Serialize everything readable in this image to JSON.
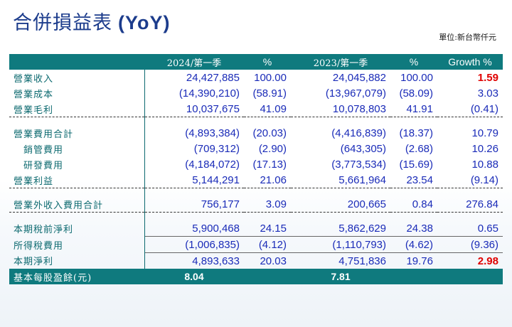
{
  "title": {
    "cjk": "合併損益表",
    "latin": "(YoY)"
  },
  "unit_note": "單位:新台幣仟元",
  "headers": [
    "",
    "2024/第一季",
    "%",
    "2023/第一季",
    "%",
    "Growth %"
  ],
  "rows": [
    {
      "label": "營業收入",
      "v1": "24,427,885",
      "p1": "100.00",
      "v2": "24,045,882",
      "p2": "100.00",
      "g": "1.59"
    },
    {
      "label": "營業成本",
      "v1": "(14,390,210)",
      "p1": "(58.91)",
      "v2": "(13,967,079)",
      "p2": "(58.09)",
      "g": "3.03"
    },
    {
      "label": "營業毛利",
      "v1": "10,037,675",
      "p1": "41.09",
      "v2": "10,078,803",
      "p2": "41.91",
      "g": "(0.41)"
    },
    {
      "label": "營業費用合計",
      "v1": "(4,893,384)",
      "p1": "(20.03)",
      "v2": "(4,416,839)",
      "p2": "(18.37)",
      "g": "10.79"
    },
    {
      "label": "銷管費用",
      "v1": "(709,312)",
      "p1": "(2.90)",
      "v2": "(643,305)",
      "p2": "(2.68)",
      "g": "10.26"
    },
    {
      "label": "研發費用",
      "v1": "(4,184,072)",
      "p1": "(17.13)",
      "v2": "(3,773,534)",
      "p2": "(15.69)",
      "g": "10.88"
    },
    {
      "label": "營業利益",
      "v1": "5,144,291",
      "p1": "21.06",
      "v2": "5,661,964",
      "p2": "23.54",
      "g": "(9.14)"
    },
    {
      "label": "營業外收入費用合計",
      "v1": "756,177",
      "p1": "3.09",
      "v2": "200,665",
      "p2": "0.84",
      "g": "276.84"
    },
    {
      "label": "本期稅前淨利",
      "v1": "5,900,468",
      "p1": "24.15",
      "v2": "5,862,629",
      "p2": "24.38",
      "g": "0.65"
    },
    {
      "label": "所得稅費用",
      "v1": "(1,006,835)",
      "p1": "(4.12)",
      "v2": "(1,110,793)",
      "p2": "(4.62)",
      "g": "(9.36)"
    },
    {
      "label": "本期淨利",
      "v1": "4,893,633",
      "p1": "20.03",
      "v2": "4,751,836",
      "p2": "19.76",
      "g": "2.98"
    }
  ],
  "footer": {
    "label": "基本每股盈餘(元)",
    "eps_2024": "8.04",
    "eps_2023": "7.81"
  },
  "colors": {
    "header_bg": "#0f7a7e",
    "title": "#1c3c8c",
    "value": "#1a2bb8",
    "highlight": "#e00000"
  }
}
